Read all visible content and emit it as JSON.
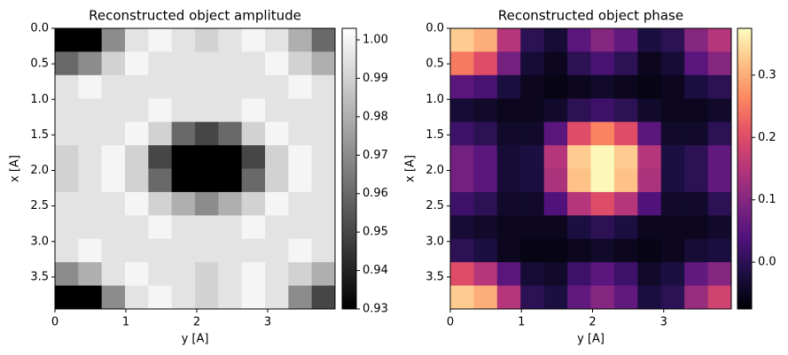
{
  "chart_data": [
    {
      "type": "heatmap",
      "title": "Reconstructed object amplitude",
      "x_label": "y [A]",
      "y_label": "x [A]",
      "cmap": "gray",
      "xlim": [
        0,
        3.95
      ],
      "ylim": [
        3.95,
        0
      ],
      "xticks": [
        0,
        1,
        2,
        3
      ],
      "yticks": [
        {
          "value": 0,
          "label": "0.0"
        },
        0.5,
        {
          "value": 1,
          "label": "1.0"
        },
        1.5,
        {
          "value": 2,
          "label": "2.0"
        },
        2.5,
        {
          "value": 3,
          "label": "3.0"
        },
        3.5
      ],
      "clim": [
        0.93,
        1.003
      ],
      "cticks": [
        0.93,
        0.94,
        0.95,
        0.96,
        0.97,
        0.98,
        0.99,
        {
          "value": 1,
          "label": "1.00"
        }
      ],
      "z": [
        [
          0.93,
          0.93,
          0.97,
          0.995,
          1.0,
          0.995,
          0.99,
          0.995,
          1.0,
          0.995,
          0.98,
          0.96
        ],
        [
          0.96,
          0.97,
          0.99,
          1.0,
          0.995,
          0.995,
          0.995,
          0.995,
          0.995,
          1.0,
          0.99,
          0.98
        ],
        [
          0.995,
          1.0,
          0.995,
          0.995,
          0.995,
          0.995,
          0.995,
          0.995,
          0.995,
          0.995,
          1.0,
          0.995
        ],
        [
          0.995,
          0.995,
          0.995,
          0.995,
          1.0,
          0.995,
          0.995,
          0.995,
          1.0,
          0.995,
          0.995,
          0.995
        ],
        [
          0.995,
          0.995,
          0.995,
          1.0,
          0.99,
          0.96,
          0.95,
          0.96,
          0.99,
          1.0,
          0.995,
          0.995
        ],
        [
          0.99,
          0.995,
          1.0,
          0.99,
          0.95,
          0.93,
          0.93,
          0.93,
          0.95,
          0.99,
          1.0,
          0.995
        ],
        [
          0.99,
          0.995,
          1.0,
          0.99,
          0.96,
          0.93,
          0.93,
          0.93,
          0.96,
          0.99,
          1.0,
          0.995
        ],
        [
          0.995,
          0.995,
          0.995,
          1.0,
          0.99,
          0.98,
          0.97,
          0.98,
          0.99,
          1.0,
          0.995,
          0.995
        ],
        [
          0.995,
          0.995,
          0.995,
          0.995,
          1.0,
          0.995,
          0.995,
          0.995,
          1.0,
          0.995,
          0.995,
          0.995
        ],
        [
          0.995,
          1.0,
          0.995,
          0.995,
          0.995,
          0.995,
          0.995,
          0.995,
          0.995,
          0.995,
          1.0,
          0.995
        ],
        [
          0.97,
          0.98,
          0.995,
          1.0,
          0.995,
          0.995,
          0.99,
          0.995,
          1.0,
          0.995,
          0.99,
          0.98
        ],
        [
          0.93,
          0.93,
          0.97,
          0.995,
          1.0,
          0.995,
          0.99,
          0.995,
          1.0,
          0.995,
          0.97,
          0.95
        ]
      ]
    },
    {
      "type": "heatmap",
      "title": "Reconstructed object phase",
      "x_label": "y [A]",
      "y_label": "x [A]",
      "cmap": "magma",
      "xlim": [
        0,
        3.95
      ],
      "ylim": [
        3.95,
        0
      ],
      "xticks": [
        0,
        1,
        2,
        3
      ],
      "yticks": [
        {
          "value": 0,
          "label": "0.0"
        },
        0.5,
        {
          "value": 1,
          "label": "1.0"
        },
        1.5,
        {
          "value": 2,
          "label": "2.0"
        },
        2.5,
        {
          "value": 3,
          "label": "3.0"
        },
        3.5
      ],
      "clim": [
        -0.075,
        0.375
      ],
      "cticks": [
        {
          "value": 0,
          "label": "0.0"
        },
        0.1,
        0.2,
        0.3
      ],
      "z": [
        [
          0.33,
          0.3,
          0.15,
          0.0,
          -0.03,
          0.05,
          0.1,
          0.06,
          -0.02,
          0.0,
          0.1,
          0.15
        ],
        [
          0.25,
          0.2,
          0.08,
          -0.03,
          -0.05,
          0.0,
          0.03,
          0.0,
          -0.05,
          -0.03,
          0.05,
          0.1
        ],
        [
          0.05,
          0.03,
          -0.02,
          -0.05,
          -0.06,
          -0.05,
          -0.04,
          -0.05,
          -0.06,
          -0.05,
          -0.02,
          0.0
        ],
        [
          -0.03,
          -0.04,
          -0.05,
          -0.05,
          -0.04,
          0.0,
          0.02,
          0.0,
          -0.04,
          -0.05,
          -0.05,
          -0.04
        ],
        [
          0.02,
          0.0,
          -0.04,
          -0.04,
          0.05,
          0.2,
          0.26,
          0.2,
          0.05,
          -0.04,
          -0.04,
          0.0
        ],
        [
          0.08,
          0.05,
          -0.03,
          -0.02,
          0.15,
          0.33,
          0.37,
          0.33,
          0.15,
          -0.02,
          0.0,
          0.06
        ],
        [
          0.08,
          0.05,
          -0.03,
          -0.02,
          0.14,
          0.32,
          0.37,
          0.32,
          0.14,
          -0.02,
          0.0,
          0.06
        ],
        [
          0.02,
          0.0,
          -0.04,
          -0.04,
          0.04,
          0.15,
          0.2,
          0.15,
          0.04,
          -0.04,
          -0.04,
          0.0
        ],
        [
          -0.03,
          -0.04,
          -0.05,
          -0.05,
          -0.05,
          -0.02,
          0.0,
          -0.02,
          -0.05,
          -0.05,
          -0.05,
          -0.04
        ],
        [
          0.0,
          -0.02,
          -0.05,
          -0.06,
          -0.06,
          -0.05,
          -0.04,
          -0.05,
          -0.06,
          -0.05,
          -0.03,
          -0.02
        ],
        [
          0.2,
          0.15,
          0.05,
          -0.03,
          -0.04,
          0.02,
          0.05,
          0.02,
          -0.04,
          -0.02,
          0.06,
          0.1
        ],
        [
          0.33,
          0.3,
          0.15,
          0.0,
          -0.02,
          0.06,
          0.1,
          0.06,
          -0.02,
          0.0,
          0.12,
          0.18
        ]
      ]
    }
  ]
}
